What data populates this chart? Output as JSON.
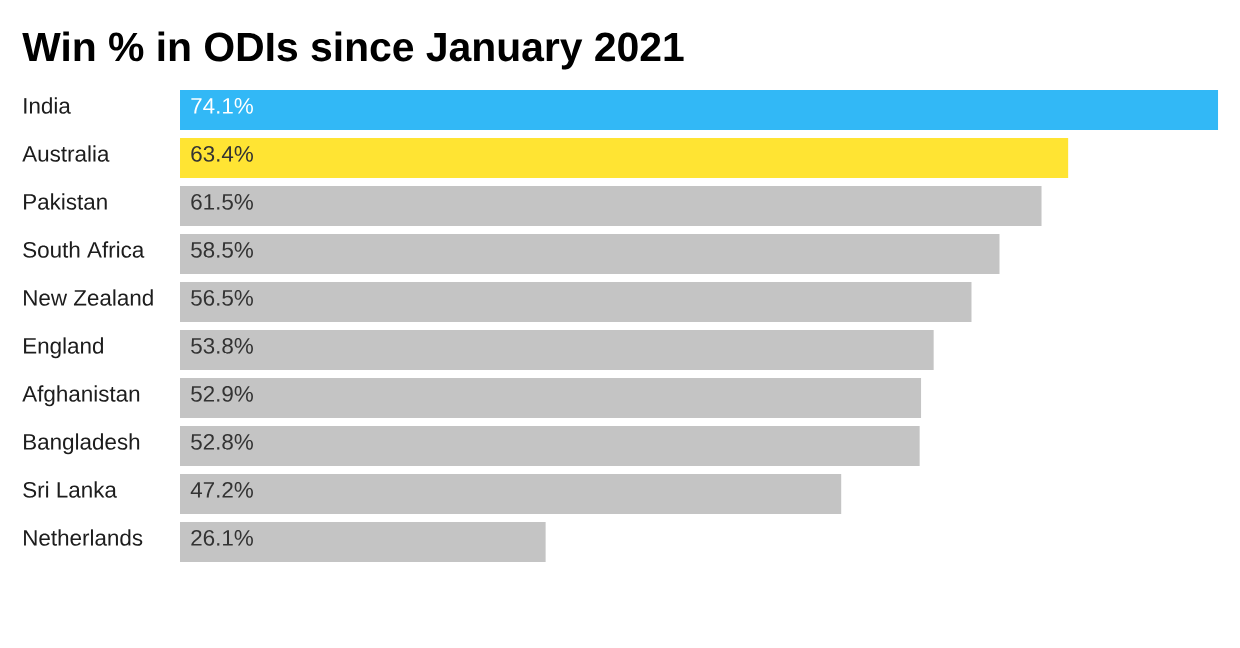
{
  "chart_data": {
    "type": "bar",
    "orientation": "horizontal",
    "title": "Win % in ODIs since January 2021",
    "categories": [
      "India",
      "Australia",
      "Pakistan",
      "South Africa",
      "New Zealand",
      "England",
      "Afghanistan",
      "Bangladesh",
      "Sri Lanka",
      "Netherlands"
    ],
    "values": [
      74.1,
      63.4,
      61.5,
      58.5,
      56.5,
      53.8,
      52.9,
      52.8,
      47.2,
      26.1
    ],
    "value_labels": [
      "74.1%",
      "63.4%",
      "61.5%",
      "58.5%",
      "56.5%",
      "53.8%",
      "52.9%",
      "52.8%",
      "47.2%",
      "26.1%"
    ],
    "colors": [
      "#32b8f6",
      "#ffe433",
      "#c4c4c4",
      "#c4c4c4",
      "#c4c4c4",
      "#c4c4c4",
      "#c4c4c4",
      "#c4c4c4",
      "#c4c4c4",
      "#c4c4c4"
    ]
  }
}
